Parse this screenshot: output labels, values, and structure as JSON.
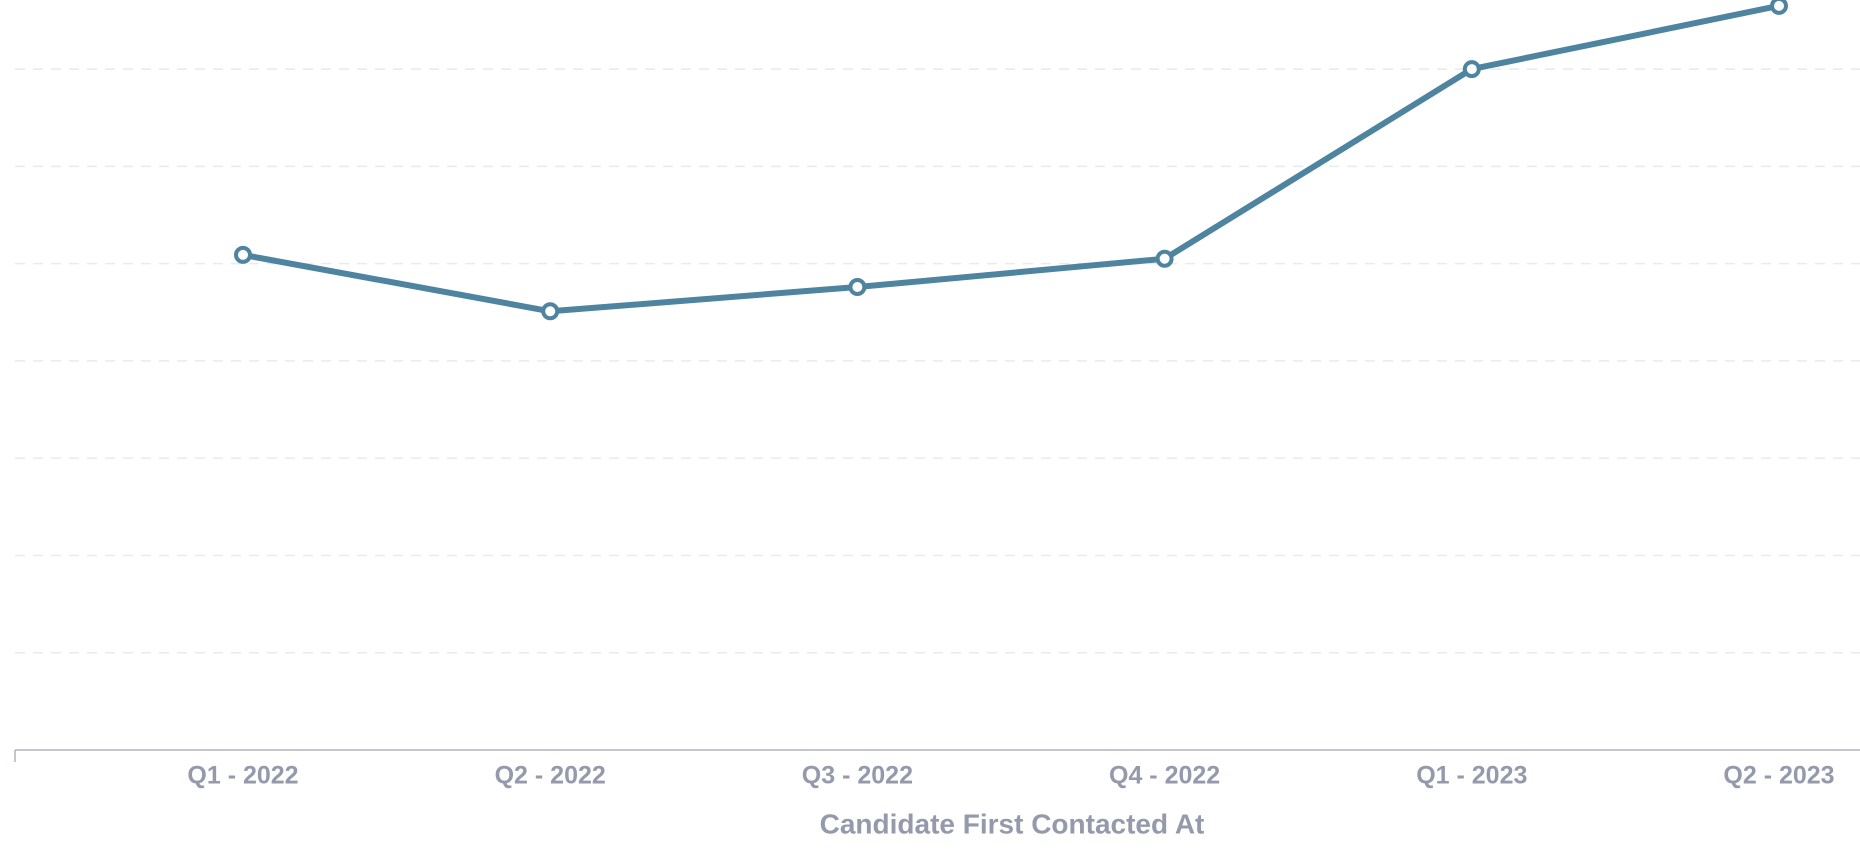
{
  "chart_data": {
    "type": "line",
    "x_label": "Candidate First Contacted At",
    "categories": [
      "Q1 - 2022",
      "Q2 - 2022",
      "Q3 - 2022",
      "Q4 - 2022",
      "Q1 - 2023",
      "Q2 - 2023"
    ],
    "values": [
      5.09,
      4.51,
      4.76,
      5.05,
      7.0,
      7.65
    ],
    "color": "#4e84a0",
    "ylim": [
      0,
      7.7
    ],
    "yticks": [
      1,
      2,
      3,
      4,
      5,
      6,
      7
    ],
    "ytick_labels": false,
    "grid": true
  }
}
